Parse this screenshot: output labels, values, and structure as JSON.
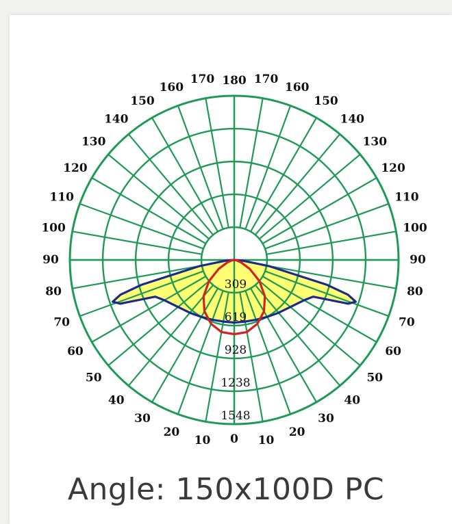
{
  "caption": "Angle: 150x100D  PC",
  "chart_data": {
    "type": "polar",
    "angle_ticks_left": [
      "0",
      "10",
      "20",
      "30",
      "40",
      "50",
      "60",
      "70",
      "80",
      "90",
      "100",
      "110",
      "120",
      "130",
      "140",
      "150",
      "160",
      "170",
      "180"
    ],
    "angle_ticks_right": [
      "10",
      "20",
      "30",
      "40",
      "50",
      "60",
      "70",
      "80",
      "90",
      "100",
      "110",
      "120",
      "130",
      "140",
      "150",
      "160",
      "170"
    ],
    "radial_ticks": [
      "309",
      "619",
      "928",
      "1238",
      "1548"
    ],
    "radial_values": [
      309,
      619,
      928,
      1238,
      1548
    ],
    "rmax": 1548,
    "grid": true,
    "series": [
      {
        "color": "#1b2a8c",
        "fill": "#ffff4d",
        "angles_deg": [
          -90,
          -85,
          -80,
          -75,
          -73,
          -71,
          -69,
          -65,
          -60,
          -50,
          -40,
          -30,
          -20,
          -10,
          0,
          10,
          20,
          30,
          40,
          50,
          60,
          65,
          69,
          71,
          73,
          75,
          80,
          85,
          90
        ],
        "values": [
          0,
          80,
          330,
          900,
          1120,
          1210,
          1150,
          820,
          760,
          690,
          650,
          620,
          600,
          590,
          590,
          590,
          600,
          620,
          650,
          690,
          760,
          820,
          1150,
          1210,
          1120,
          900,
          330,
          80,
          0
        ]
      },
      {
        "color": "#d42020",
        "angles_deg": [
          -90,
          -80,
          -70,
          -60,
          -50,
          -40,
          -30,
          -20,
          -10,
          0,
          10,
          20,
          30,
          40,
          50,
          60,
          70,
          80,
          90
        ],
        "values": [
          0,
          20,
          70,
          170,
          310,
          450,
          560,
          640,
          690,
          700,
          690,
          640,
          560,
          450,
          310,
          170,
          70,
          20,
          0
        ]
      }
    ],
    "colors": {
      "grid": "#1f9a55",
      "fill": "#ffff4d",
      "curve_c0": "#1b2a8c",
      "curve_c90": "#d42020"
    }
  }
}
